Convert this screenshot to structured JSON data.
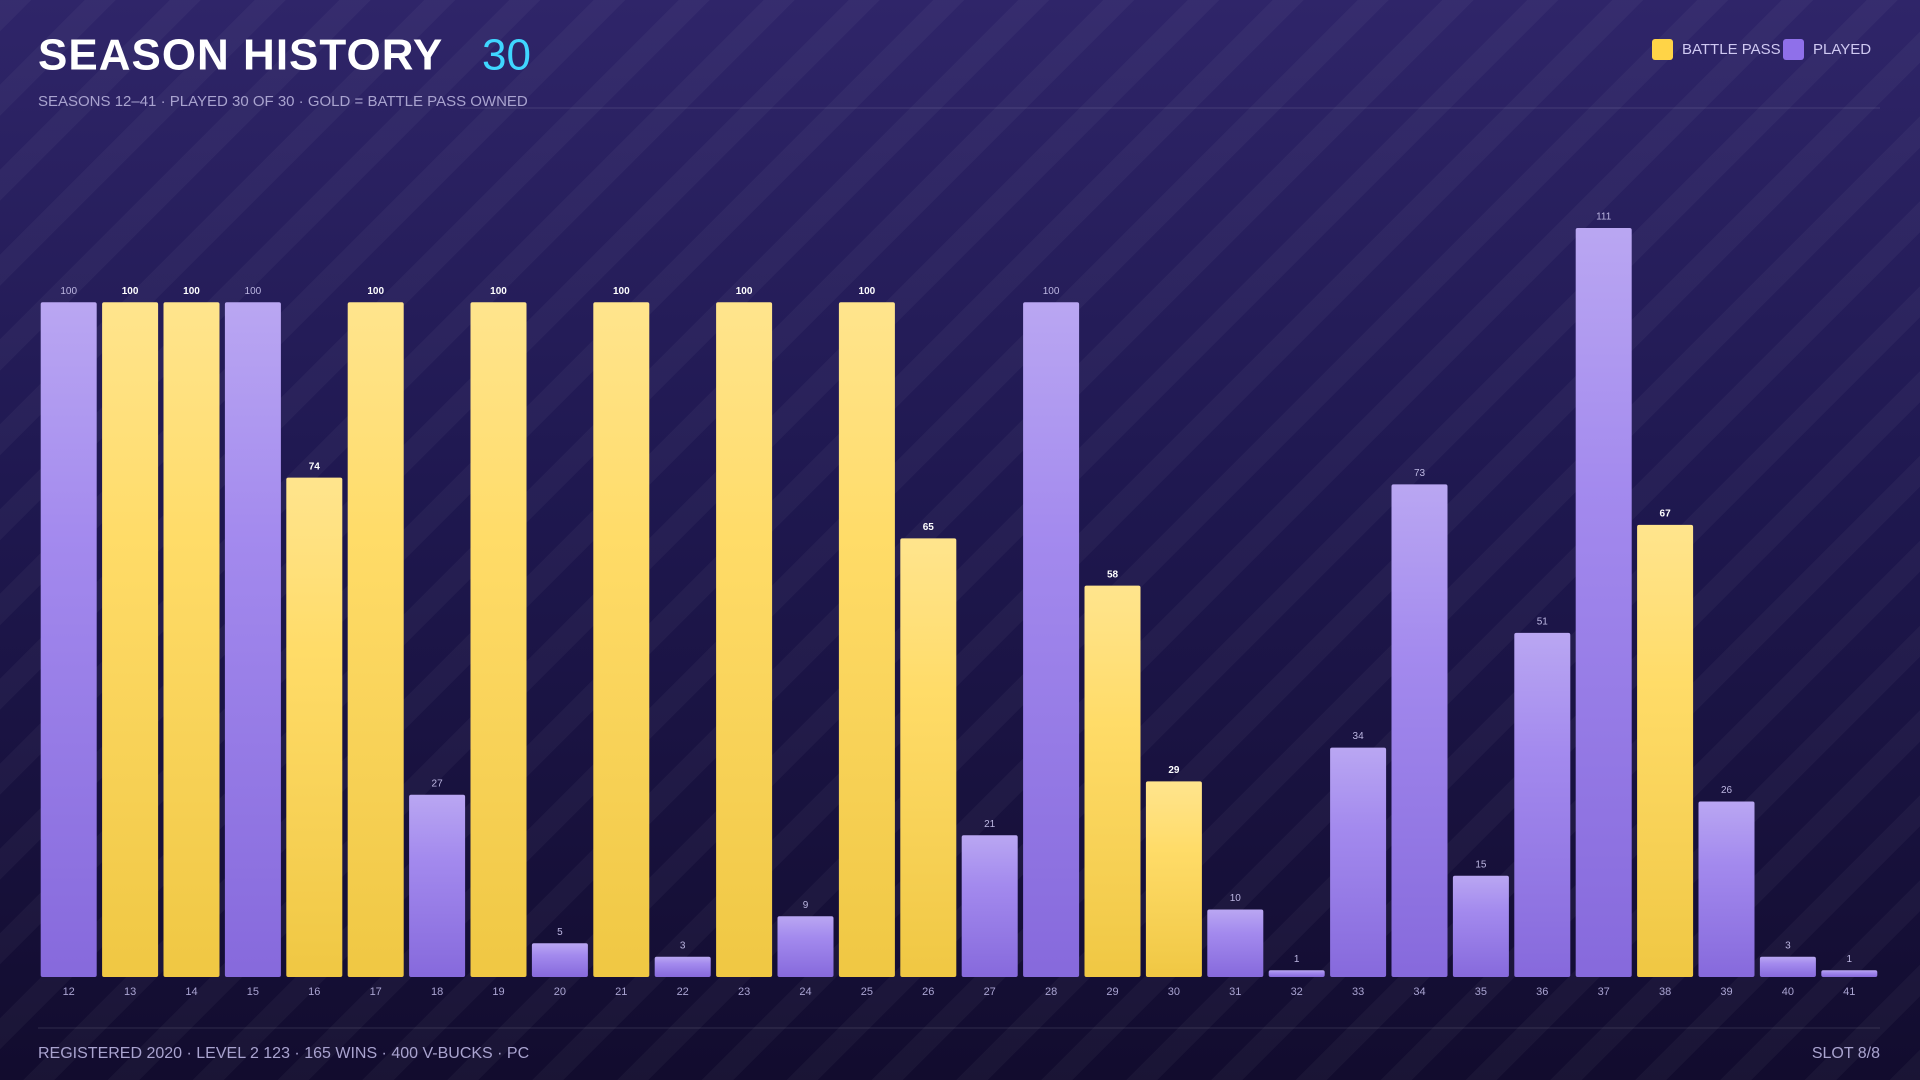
{
  "chart_data": {
    "type": "bar",
    "title": "SEASON HISTORY",
    "count": 30,
    "subtitle": "SEASONS 12–41 · PLAYED 30 OF 30 · GOLD = BATTLE PASS OWNED",
    "footer": "REGISTERED 2020 · LEVEL 2 123 · 165 WINS · 400 V-BUCKS · PC",
    "slot": "SLOT 8/8",
    "categories": [
      "12",
      "13",
      "14",
      "15",
      "16",
      "17",
      "18",
      "19",
      "20",
      "21",
      "22",
      "23",
      "24",
      "25",
      "26",
      "27",
      "28",
      "29",
      "30",
      "31",
      "32",
      "33",
      "34",
      "35",
      "36",
      "37",
      "38",
      "39",
      "40",
      "41"
    ],
    "series": [
      {
        "name": "BATTLE PASS",
        "color": "#ffd447",
        "values": [
          null,
          100,
          100,
          null,
          74,
          100,
          null,
          100,
          null,
          100,
          null,
          100,
          null,
          100,
          65,
          null,
          null,
          58,
          29,
          null,
          null,
          null,
          null,
          null,
          null,
          null,
          67,
          null,
          null,
          null
        ]
      },
      {
        "name": "PLAYED",
        "color": "#8f70ea",
        "values": [
          100,
          null,
          null,
          100,
          null,
          null,
          27,
          null,
          5,
          null,
          3,
          null,
          9,
          null,
          null,
          21,
          100,
          null,
          null,
          10,
          1,
          34,
          73,
          15,
          51,
          111,
          null,
          26,
          3,
          1
        ]
      }
    ]
  }
}
